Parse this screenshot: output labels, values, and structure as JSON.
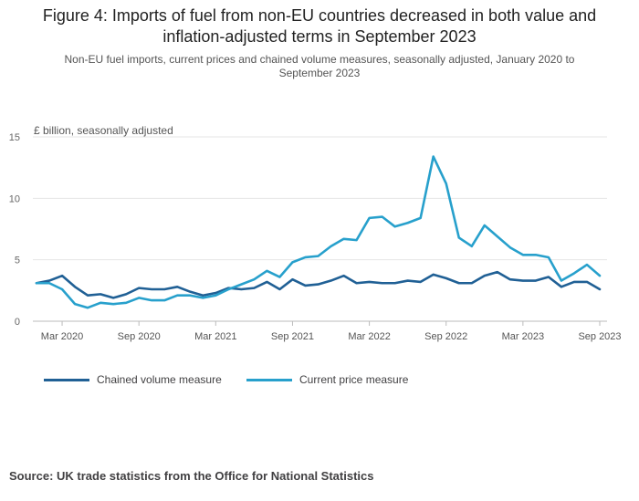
{
  "title": "Figure 4: Imports of fuel from non-EU countries decreased in both value and inflation-adjusted terms in September 2023",
  "subtitle": "Non-EU fuel imports, current prices and chained volume measures, seasonally adjusted, January 2020 to September 2023",
  "source": "Source: UK trade statistics from the Office for National Statistics",
  "colors": {
    "chained": "#206095",
    "current": "#27a0cc",
    "grid": "#e6e6e6",
    "axis": "#bbbbbb"
  },
  "chart_data": {
    "type": "line",
    "ylabel": "£ billion, seasonally adjusted",
    "ylim": [
      0,
      15
    ],
    "yticks": [
      0,
      5,
      10,
      15
    ],
    "grid": "horizontal",
    "legend_position": "bottom-left",
    "x": [
      "Jan 2020",
      "Feb 2020",
      "Mar 2020",
      "Apr 2020",
      "May 2020",
      "Jun 2020",
      "Jul 2020",
      "Aug 2020",
      "Sep 2020",
      "Oct 2020",
      "Nov 2020",
      "Dec 2020",
      "Jan 2021",
      "Feb 2021",
      "Mar 2021",
      "Apr 2021",
      "May 2021",
      "Jun 2021",
      "Jul 2021",
      "Aug 2021",
      "Sep 2021",
      "Oct 2021",
      "Nov 2021",
      "Dec 2021",
      "Jan 2022",
      "Feb 2022",
      "Mar 2022",
      "Apr 2022",
      "May 2022",
      "Jun 2022",
      "Jul 2022",
      "Aug 2022",
      "Sep 2022",
      "Oct 2022",
      "Nov 2022",
      "Dec 2022",
      "Jan 2023",
      "Feb 2023",
      "Mar 2023",
      "Apr 2023",
      "May 2023",
      "Jun 2023",
      "Jul 2023",
      "Aug 2023",
      "Sep 2023"
    ],
    "xtick_labels": [
      {
        "index": 2,
        "label": "Mar 2020"
      },
      {
        "index": 8,
        "label": "Sep 2020"
      },
      {
        "index": 14,
        "label": "Mar 2021"
      },
      {
        "index": 20,
        "label": "Sep 2021"
      },
      {
        "index": 26,
        "label": "Mar 2022"
      },
      {
        "index": 32,
        "label": "Sep 2022"
      },
      {
        "index": 38,
        "label": "Mar 2023"
      },
      {
        "index": 44,
        "label": "Sep 2023"
      }
    ],
    "series": [
      {
        "name": "Chained volume measure",
        "color": "#206095",
        "values": [
          3.1,
          3.3,
          3.7,
          2.8,
          2.1,
          2.2,
          1.9,
          2.2,
          2.7,
          2.6,
          2.6,
          2.8,
          2.4,
          2.1,
          2.3,
          2.7,
          2.6,
          2.7,
          3.2,
          2.6,
          3.4,
          2.9,
          3.0,
          3.3,
          3.7,
          3.1,
          3.2,
          3.1,
          3.1,
          3.3,
          3.2,
          3.8,
          3.5,
          3.1,
          3.1,
          3.7,
          4.0,
          3.4,
          3.3,
          3.3,
          3.6,
          2.8,
          3.2,
          3.2,
          2.6
        ]
      },
      {
        "name": "Current price measure",
        "color": "#27a0cc",
        "values": [
          3.1,
          3.1,
          2.6,
          1.4,
          1.1,
          1.5,
          1.4,
          1.5,
          1.9,
          1.7,
          1.7,
          2.1,
          2.1,
          1.9,
          2.1,
          2.6,
          3.0,
          3.4,
          4.1,
          3.6,
          4.8,
          5.2,
          5.3,
          6.1,
          6.7,
          6.6,
          8.4,
          8.5,
          7.7,
          8.0,
          8.4,
          13.4,
          11.2,
          6.8,
          6.1,
          7.8,
          6.9,
          6.0,
          5.4,
          5.4,
          5.2,
          3.3,
          3.9,
          4.6,
          3.7
        ]
      }
    ]
  }
}
